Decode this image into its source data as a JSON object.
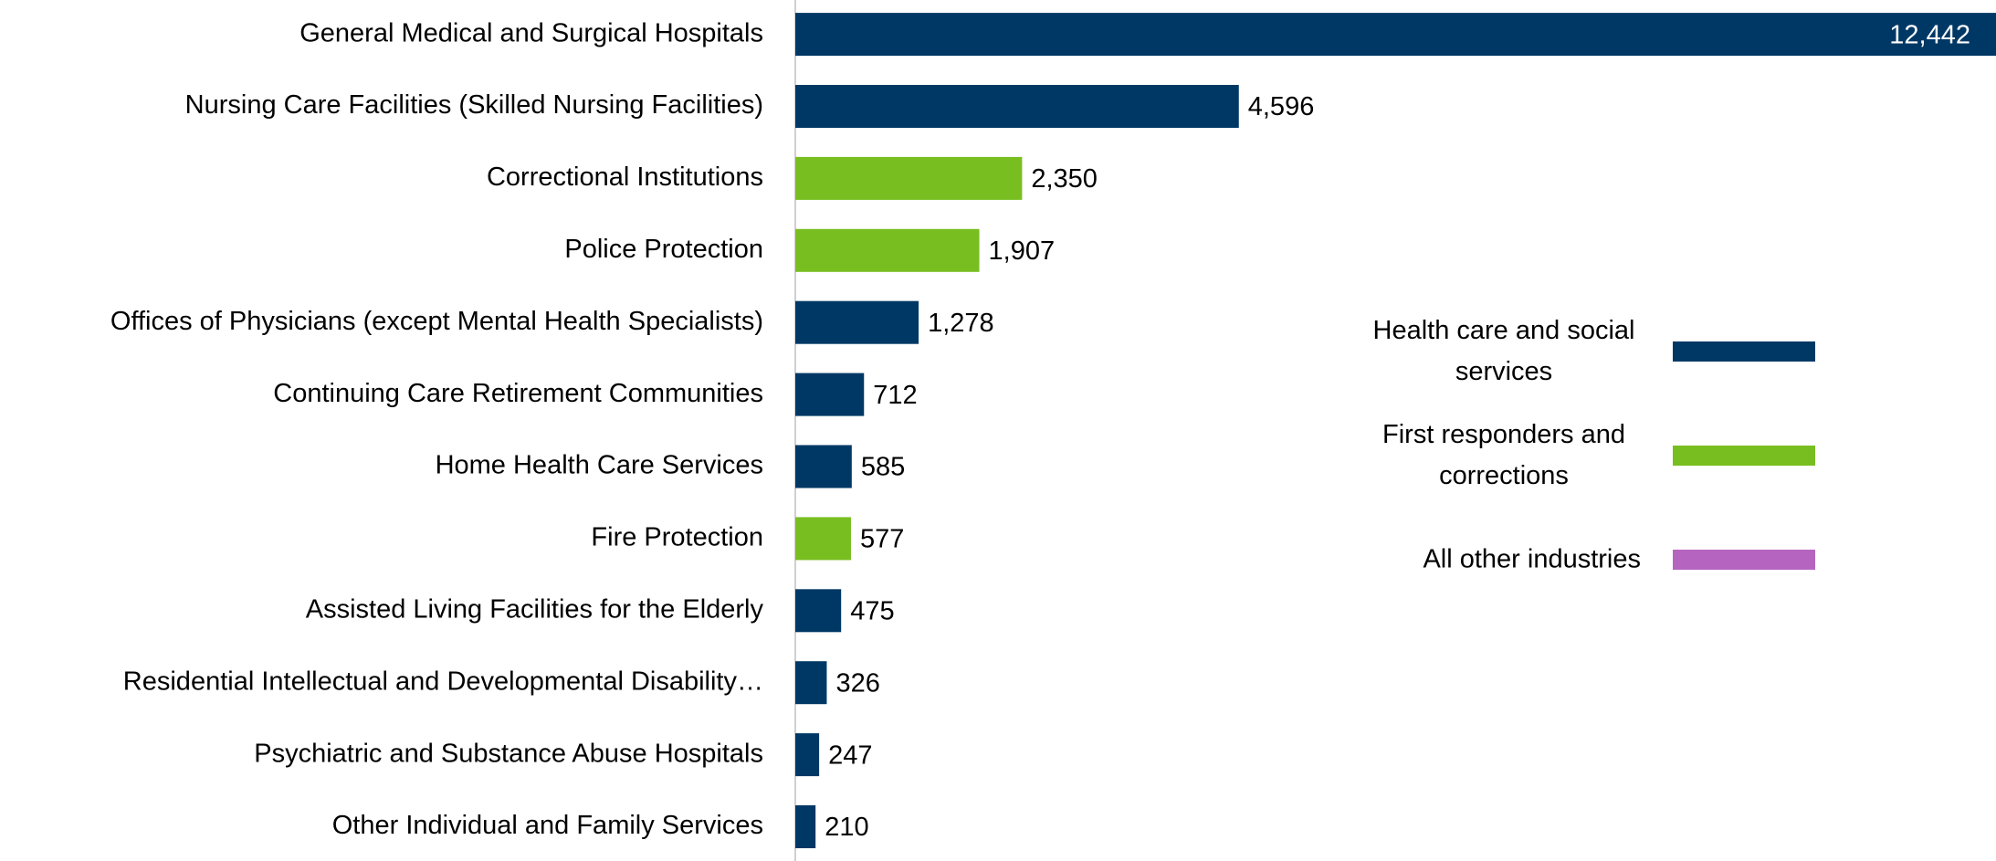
{
  "chart_data": {
    "type": "bar",
    "orientation": "horizontal",
    "categories": [
      "General Medical and Surgical Hospitals",
      "Nursing Care Facilities (Skilled Nursing Facilities)",
      "Correctional Institutions",
      "Police Protection",
      "Offices of Physicians (except Mental Health Specialists)",
      "Continuing Care Retirement Communities",
      "Home Health Care Services",
      "Fire Protection",
      "Assisted Living Facilities for the Elderly",
      "Residential Intellectual and Developmental Disability…",
      "Psychiatric and Substance Abuse Hospitals",
      "Other Individual and Family Services"
    ],
    "series": [
      {
        "name": "Health care and social services",
        "color": "#003865",
        "values": [
          12442,
          4596,
          null,
          null,
          1278,
          712,
          585,
          null,
          475,
          326,
          247,
          210
        ],
        "value_labels": [
          "12,442",
          "4,596",
          null,
          null,
          "1,278",
          "712",
          "585",
          null,
          "475",
          "326",
          "247",
          "210"
        ]
      },
      {
        "name": "First responders and corrections",
        "color": "#78be20",
        "values": [
          null,
          null,
          2350,
          1907,
          null,
          null,
          null,
          577,
          null,
          null,
          null,
          null
        ],
        "value_labels": [
          null,
          null,
          "2,350",
          "1,907",
          null,
          null,
          null,
          "577",
          null,
          null,
          null,
          null
        ]
      },
      {
        "name": "All other industries",
        "color": "#b565c0",
        "values": [
          null,
          null,
          null,
          null,
          null,
          null,
          null,
          null,
          null,
          null,
          null,
          null
        ],
        "value_labels": [
          null,
          null,
          null,
          null,
          null,
          null,
          null,
          null,
          null,
          null,
          null,
          null
        ]
      }
    ],
    "legend": "right"
  }
}
